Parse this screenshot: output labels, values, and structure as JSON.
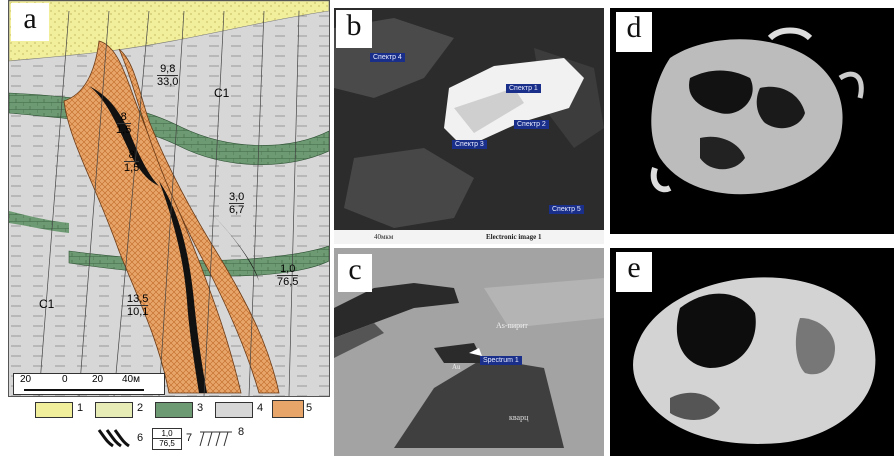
{
  "panels": {
    "a": {
      "label": "a",
      "values": [
        {
          "top": "9,8",
          "bottom": "33,0"
        },
        {
          "top": "8",
          "bottom": "1,5"
        },
        {
          "top": "8",
          "bottom": "1,5"
        },
        {
          "top": "3,0",
          "bottom": "6,7"
        },
        {
          "top": "1,0",
          "bottom": "76,5"
        },
        {
          "top": "13,5",
          "bottom": "10,1"
        }
      ],
      "strat": [
        "C1",
        "C1"
      ],
      "scale": {
        "ticks": [
          "20",
          "0",
          "20",
          "40м"
        ]
      }
    },
    "b": {
      "label": "b",
      "spectra": [
        "Спектр 4",
        "Спектр 1",
        "Спектр 2",
        "Спектр 3",
        "Спектр 5"
      ],
      "caption_left": "40мкм",
      "caption": "Electronic image 1"
    },
    "c": {
      "label": "c",
      "annotations": [
        "As-пирит",
        "Spectrum 1",
        "Au",
        "кварц"
      ]
    },
    "d": {
      "label": "d"
    },
    "e": {
      "label": "e"
    }
  },
  "legend": {
    "items": [
      "1",
      "2",
      "3",
      "4",
      "5",
      "6",
      "7",
      "8"
    ],
    "sample": {
      "top": "1,0",
      "bottom": "76,5"
    }
  }
}
